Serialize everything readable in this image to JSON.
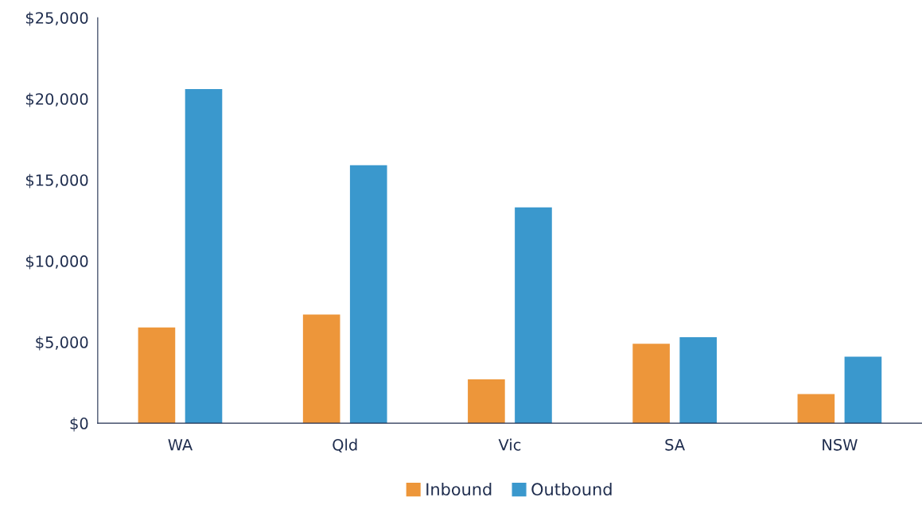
{
  "chart_data": {
    "type": "bar",
    "categories": [
      "WA",
      "Qld",
      "Vic",
      "SA",
      "NSW"
    ],
    "series": [
      {
        "name": "Inbound",
        "color": "#ed963a",
        "values": [
          5900,
          6700,
          2700,
          4900,
          1800
        ]
      },
      {
        "name": "Outbound",
        "color": "#3a98cd",
        "values": [
          20600,
          15900,
          13300,
          5300,
          4100
        ]
      }
    ],
    "ylim": [
      0,
      25000
    ],
    "yticks": [
      {
        "value": 0,
        "label": "$0"
      },
      {
        "value": 5000,
        "label": "$5,000"
      },
      {
        "value": 10000,
        "label": "$10,000"
      },
      {
        "value": 15000,
        "label": "$15,000"
      },
      {
        "value": 20000,
        "label": "$20,000"
      },
      {
        "value": 25000,
        "label": "$25,000"
      }
    ],
    "grid": false,
    "legend": "bottom"
  }
}
